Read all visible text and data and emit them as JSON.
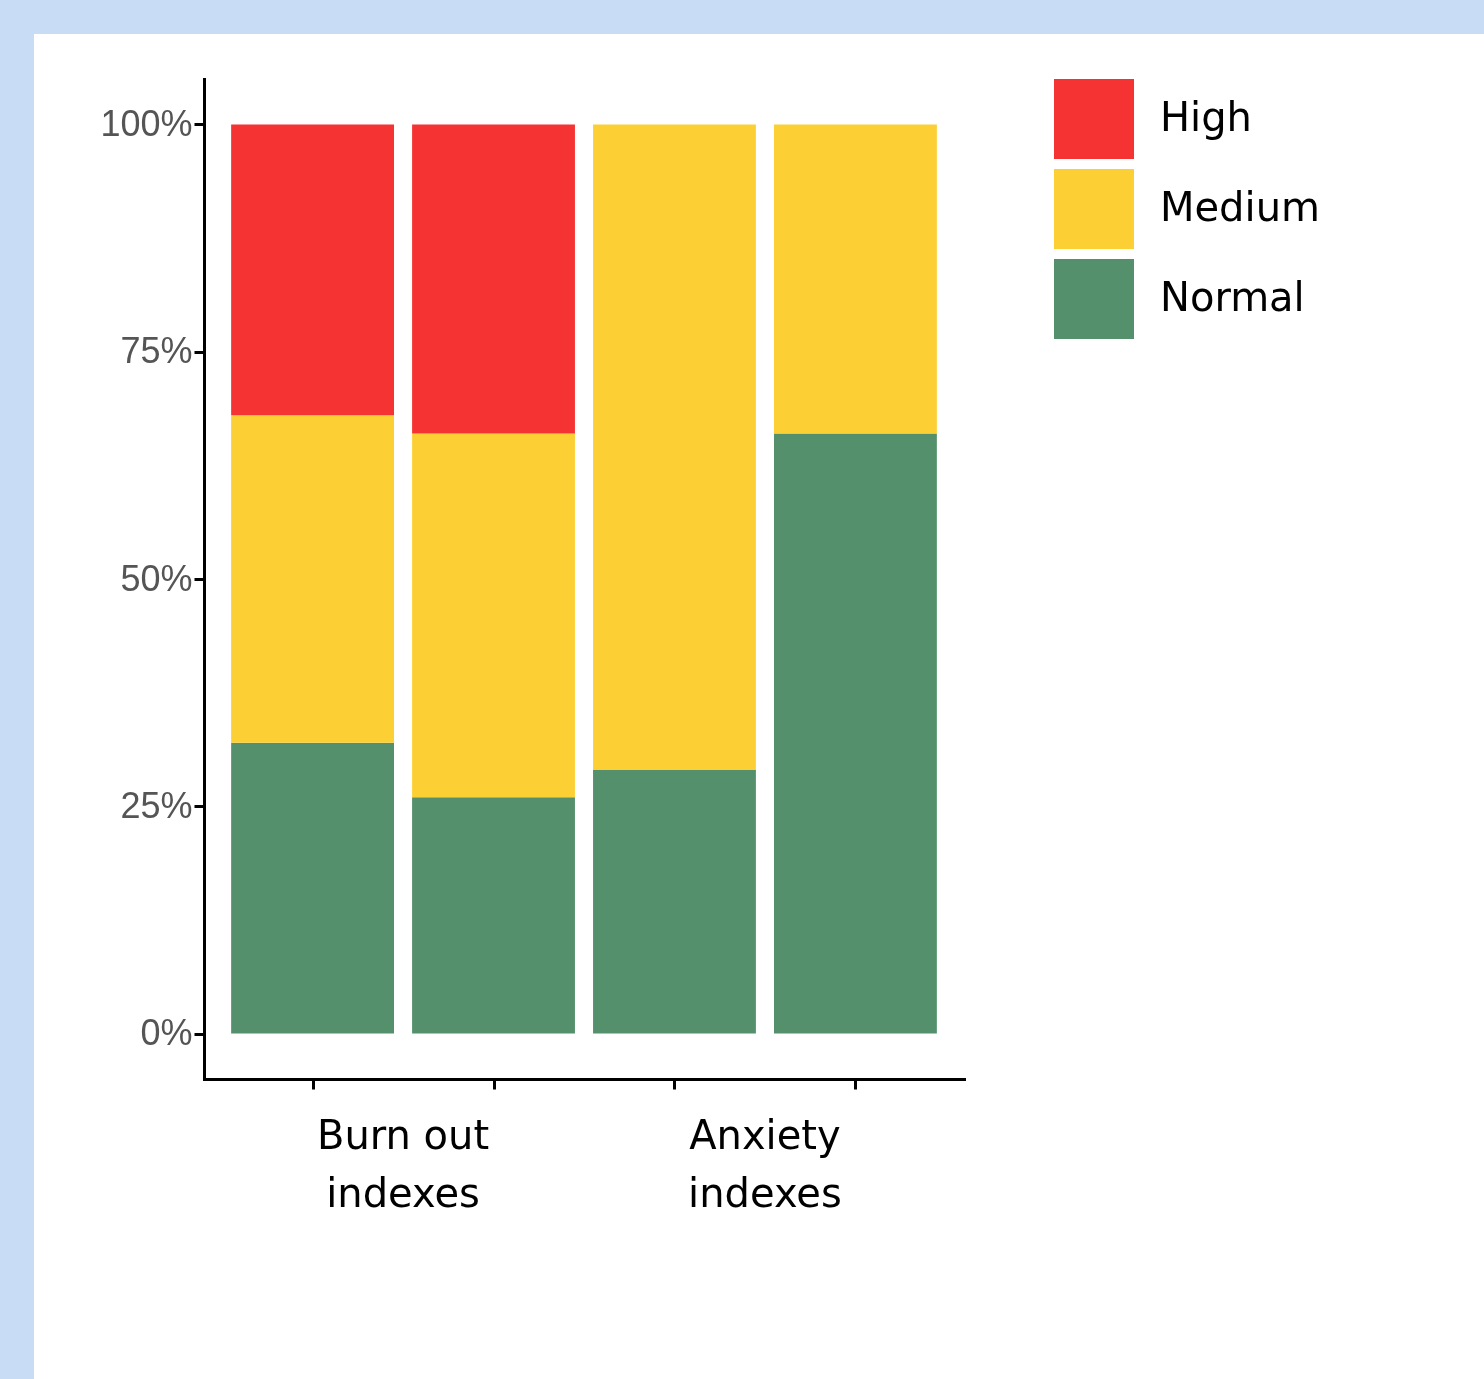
{
  "chart_data": {
    "type": "bar",
    "stacked": true,
    "categories": [
      null,
      null,
      null,
      null
    ],
    "series": [
      {
        "name": "Normal",
        "color": "#55906c",
        "values": [
          32,
          26,
          29,
          66
        ]
      },
      {
        "name": "Medium",
        "color": "#fcd034",
        "values": [
          36,
          40,
          71,
          34
        ]
      },
      {
        "name": "High",
        "color": "#f53333",
        "values": [
          32,
          34,
          0,
          0
        ]
      }
    ],
    "ylim": [
      -5,
      105
    ],
    "yticks": [
      {
        "value": 0,
        "label": "0%"
      },
      {
        "value": 25,
        "label": "25%"
      },
      {
        "value": 50,
        "label": "50%"
      },
      {
        "value": 75,
        "label": "75%"
      },
      {
        "value": 100,
        "label": "100%"
      }
    ],
    "legend": "right",
    "grid": false,
    "annotations": [
      "Burn out indexes",
      "Anxiety indexes"
    ]
  }
}
